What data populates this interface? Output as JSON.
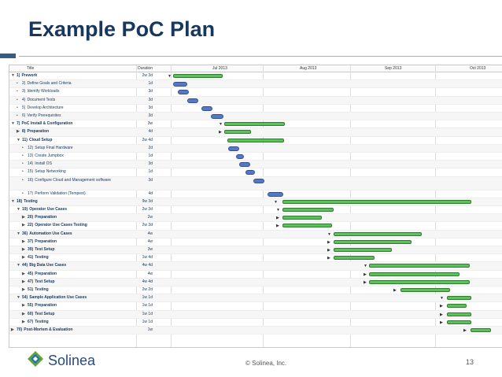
{
  "slide": {
    "title": "Example PoC Plan",
    "footer_copyright": "© Solinea, Inc.",
    "page_number": "13",
    "logo_text": "Solinea"
  },
  "colors": {
    "title": "#17375e",
    "summary_bar": "#5cc15c",
    "task_bar": "#5578c2"
  },
  "gantt": {
    "headers": {
      "title": "Title",
      "duration": "Duration"
    },
    "months": [
      "Jul 2013",
      "Aug 2013",
      "Sep 2013",
      "Oct 2013"
    ],
    "rows": [
      {
        "num": "1)",
        "label": "Prework",
        "duration": "2w 3d",
        "summary": true,
        "toggle": "▼",
        "indent": 0
      },
      {
        "num": "2)",
        "label": "Define Goals and Criteria",
        "duration": "1d",
        "summary": false,
        "toggle": "•",
        "indent": 1
      },
      {
        "num": "3)",
        "label": "Identify Workloads",
        "duration": "3d",
        "summary": false,
        "toggle": "•",
        "indent": 1
      },
      {
        "num": "4)",
        "label": "Document Tests",
        "duration": "3d",
        "summary": false,
        "toggle": "•",
        "indent": 1
      },
      {
        "num": "5)",
        "label": "Develop Architecture",
        "duration": "3d",
        "summary": false,
        "toggle": "•",
        "indent": 1
      },
      {
        "num": "6)",
        "label": "Verify Prerequisites",
        "duration": "3d",
        "summary": false,
        "toggle": "•",
        "indent": 1
      },
      {
        "num": "7)",
        "label": "PoC Install & Configuration",
        "duration": "3w",
        "summary": true,
        "toggle": "▼",
        "indent": 0
      },
      {
        "num": "8)",
        "label": "Preparation",
        "duration": "4d",
        "summary": true,
        "toggle": "▶",
        "indent": 1
      },
      {
        "num": "11)",
        "label": "Cloud Setup",
        "duration": "2w 4d",
        "summary": true,
        "toggle": "▼",
        "indent": 1
      },
      {
        "num": "12)",
        "label": "Setup Final Hardware",
        "duration": "2d",
        "summary": false,
        "toggle": "•",
        "indent": 2
      },
      {
        "num": "13)",
        "label": "Create Jumpbox",
        "duration": "1d",
        "summary": false,
        "toggle": "•",
        "indent": 2
      },
      {
        "num": "14)",
        "label": "Install OS",
        "duration": "3d",
        "summary": false,
        "toggle": "•",
        "indent": 2
      },
      {
        "num": "15)",
        "label": "Setup Networking",
        "duration": "1d",
        "summary": false,
        "toggle": "•",
        "indent": 2
      },
      {
        "num": "16)",
        "label": "Configure Cloud and Management software",
        "duration": "3d",
        "summary": false,
        "toggle": "•",
        "indent": 2,
        "tall": true
      },
      {
        "num": "17)",
        "label": "Perform Validation (Tempest)",
        "duration": "4d",
        "summary": false,
        "toggle": "•",
        "indent": 2
      },
      {
        "num": "18)",
        "label": "Testing",
        "duration": "9w 3d",
        "summary": true,
        "toggle": "▼",
        "indent": 0
      },
      {
        "num": "19)",
        "label": "Operator Use Cases",
        "duration": "2w 3d",
        "summary": true,
        "toggle": "▼",
        "indent": 1
      },
      {
        "num": "20)",
        "label": "Preparation",
        "duration": "2w",
        "summary": true,
        "toggle": "▶",
        "indent": 2
      },
      {
        "num": "22)",
        "label": "Operator Use Cases Testing",
        "duration": "2w 3d",
        "summary": true,
        "toggle": "▶",
        "indent": 2
      },
      {
        "num": "36)",
        "label": "Automation Use Cases",
        "duration": "4w",
        "summary": true,
        "toggle": "▼",
        "indent": 1
      },
      {
        "num": "37)",
        "label": "Preparation",
        "duration": "4w",
        "summary": true,
        "toggle": "▶",
        "indent": 2
      },
      {
        "num": "39)",
        "label": "Test Setup",
        "duration": "3w",
        "summary": true,
        "toggle": "▶",
        "indent": 2
      },
      {
        "num": "41)",
        "label": "Testing",
        "duration": "1w 4d",
        "summary": true,
        "toggle": "▶",
        "indent": 2
      },
      {
        "num": "44)",
        "label": "Big Data Use Cases",
        "duration": "4w 4d",
        "summary": true,
        "toggle": "▼",
        "indent": 1
      },
      {
        "num": "45)",
        "label": "Preparation",
        "duration": "4w",
        "summary": true,
        "toggle": "▶",
        "indent": 2
      },
      {
        "num": "47)",
        "label": "Test Setup",
        "duration": "4w 4d",
        "summary": true,
        "toggle": "▶",
        "indent": 2
      },
      {
        "num": "51)",
        "label": "Testing",
        "duration": "2w 2d",
        "summary": true,
        "toggle": "▶",
        "indent": 2
      },
      {
        "num": "54)",
        "label": "Sample Application Use Cases",
        "duration": "1w 1d",
        "summary": true,
        "toggle": "▼",
        "indent": 1
      },
      {
        "num": "55)",
        "label": "Preparation",
        "duration": "1w 1d",
        "summary": true,
        "toggle": "▶",
        "indent": 2
      },
      {
        "num": "60)",
        "label": "Test Setup",
        "duration": "1w 1d",
        "summary": true,
        "toggle": "▶",
        "indent": 2
      },
      {
        "num": "67)",
        "label": "Testing",
        "duration": "1w 1d",
        "summary": true,
        "toggle": "▶",
        "indent": 2
      },
      {
        "num": "70)",
        "label": "Post-Mortem & Evaluation",
        "duration": "1w",
        "summary": true,
        "toggle": "▶",
        "indent": 0
      }
    ]
  }
}
